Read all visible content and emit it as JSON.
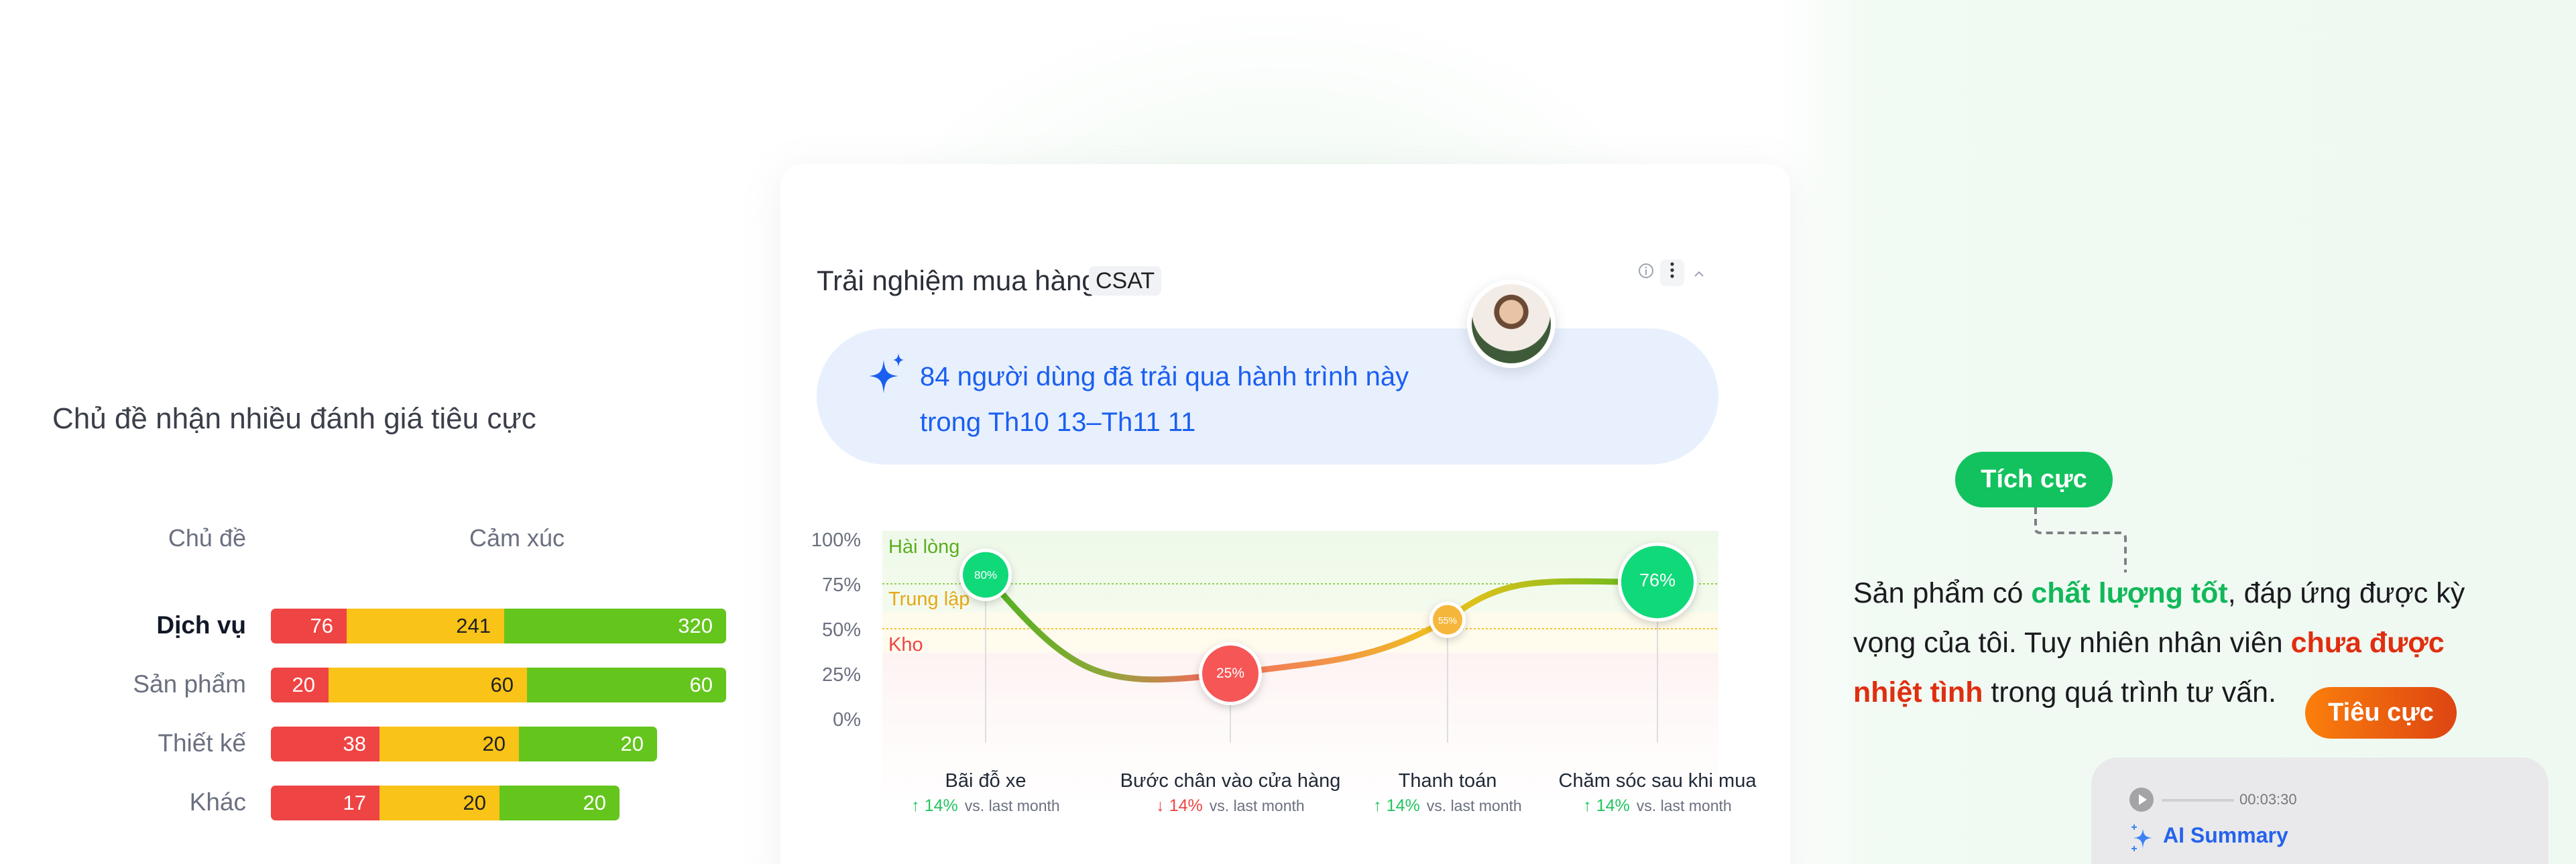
{
  "left_panel": {
    "title": "Chủ đề nhận nhiều đánh giá tiêu cực",
    "col_topic": "Chủ đề",
    "col_sentiment": "Cảm xúc",
    "colors": {
      "negative": "#ef4444",
      "neutral": "#f9c318",
      "positive": "#64c51d"
    }
  },
  "card": {
    "title": "Trải nghiệm mua hàng",
    "badge": "CSAT",
    "icons": [
      "info-icon",
      "more-vertical-icon",
      "chevron-up-icon"
    ],
    "summary_line1": "84 người dùng đã trải qua hành trình này",
    "summary_line2": "trong Th10 13–Th11 11",
    "zones": {
      "satisfied": "Hài lòng",
      "neutral": "Trung lập",
      "hard": "Kho"
    },
    "compare_suffix": "vs. last month"
  },
  "chart_data": [
    {
      "type": "bar",
      "stacked": true,
      "orientation": "horizontal",
      "categories": [
        "Dịch vụ",
        "Sản phẩm",
        "Thiết kế",
        "Khác"
      ],
      "series": [
        {
          "values": [
            76,
            20,
            38,
            17
          ],
          "color": "#ef4444"
        },
        {
          "values": [
            241,
            60,
            20,
            20
          ],
          "color": "#f9c318"
        },
        {
          "values": [
            320,
            60,
            20,
            20
          ],
          "color": "#64c51d"
        }
      ],
      "highlighted": "Dịch vụ"
    },
    {
      "type": "line",
      "categories": [
        "Bãi đỗ xe",
        "Bước chân vào cửa hàng",
        "Thanh toán",
        "Chăm sóc sau khi mua"
      ],
      "values": [
        80,
        25,
        55,
        76
      ],
      "point_labels": [
        "80%",
        "25%",
        "55%",
        "76%"
      ],
      "deltas": [
        {
          "dir": "up",
          "text": "14%"
        },
        {
          "dir": "down",
          "text": "14%"
        },
        {
          "dir": "up",
          "text": "14%"
        },
        {
          "dir": "up",
          "text": "14%"
        }
      ],
      "yticks": [
        "100%",
        "75%",
        "50%",
        "25%",
        "0%"
      ],
      "ylim": [
        0,
        100
      ],
      "thresholds": [
        75,
        50
      ],
      "colors": {
        "good": "#10d97a",
        "mid": "#f5b73b",
        "bad": "#f65656",
        "up": "#22c55e",
        "down": "#ef4444"
      }
    }
  ],
  "review": {
    "positive_tag": "Tích cực",
    "negative_tag": "Tiêu cực",
    "p1": "Sản phẩm có ",
    "hl_pos": "chất lượng tốt",
    "p2": ", đáp ứng được kỳ vọng của tôi. Tuy nhiên nhân viên ",
    "hl_neg": "chưa được nhiệt tình",
    "p3": " trong quá trình tư vấn."
  },
  "ai_summary": {
    "time": "00:03:30",
    "label": "AI Summary"
  }
}
